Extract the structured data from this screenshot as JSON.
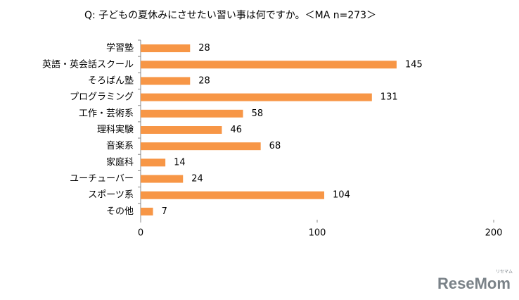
{
  "chart_data": {
    "type": "barh",
    "title": "Q: 子どもの夏休みにさせたい習い事は何ですか。＜MA n=273＞",
    "categories": [
      "学習塾",
      "英語・英会話スクール",
      "そろばん塾",
      "プログラミング",
      "工作・芸術系",
      "理科実験",
      "音楽系",
      "家庭科",
      "ユーチューバー",
      "スポーツ系",
      "その他"
    ],
    "values": [
      28,
      145,
      28,
      131,
      58,
      46,
      68,
      14,
      24,
      104,
      7
    ],
    "color": "#f79646",
    "xlim": [
      0,
      200
    ],
    "xticks": [
      0,
      100,
      200
    ],
    "grid": false
  },
  "watermark": "ReseMom",
  "watermark_sub": "リセマム"
}
